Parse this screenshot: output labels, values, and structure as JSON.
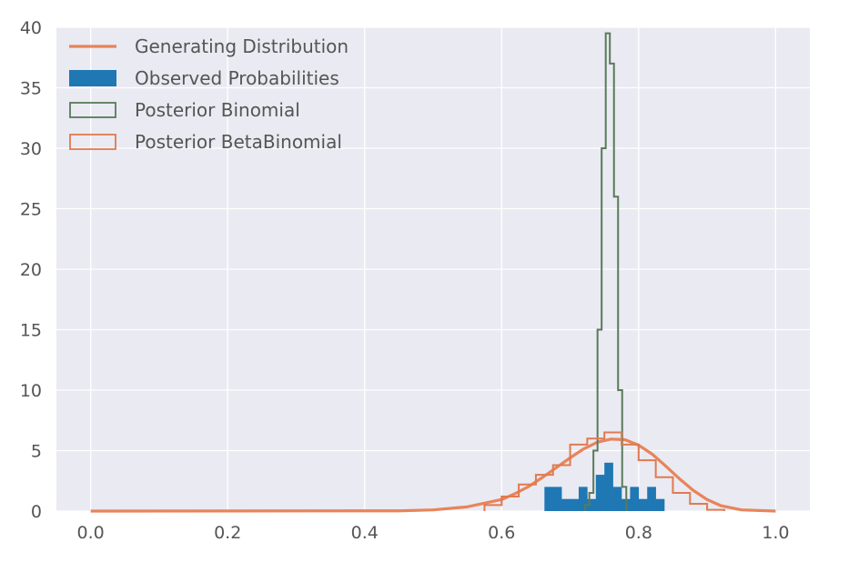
{
  "chart_data": {
    "type": "histogram",
    "title": "",
    "xlabel": "",
    "ylabel": "",
    "xlim": [
      -0.05,
      1.05
    ],
    "ylim": [
      0,
      40
    ],
    "x_ticks": [
      "0.0",
      "0.2",
      "0.4",
      "0.6",
      "0.8",
      "1.0"
    ],
    "y_ticks": [
      "0",
      "5",
      "10",
      "15",
      "20",
      "25",
      "30",
      "35",
      "40"
    ],
    "grid": true,
    "legend_position": "upper-left",
    "colors": {
      "plot_background": "#eaeaf2",
      "grid": "#ffffff",
      "generating": "#e8845a",
      "observed": "#1f77b4",
      "posterior_binomial": "#5a7a5a",
      "posterior_betabinomial": "#e07a50"
    },
    "legend": [
      {
        "label": "Generating Distribution",
        "kind": "line",
        "color_key": "generating"
      },
      {
        "label": "Observed Probabilities",
        "kind": "filled",
        "color_key": "observed"
      },
      {
        "label": "Posterior Binomial",
        "kind": "step",
        "color_key": "posterior_binomial"
      },
      {
        "label": "Posterior BetaBinomial",
        "kind": "step",
        "color_key": "posterior_betabinomial"
      }
    ],
    "series": [
      {
        "name": "Generating Distribution",
        "kind": "line",
        "color_key": "generating",
        "x": [
          0.0,
          0.45,
          0.5,
          0.55,
          0.6,
          0.62,
          0.64,
          0.66,
          0.68,
          0.7,
          0.72,
          0.74,
          0.76,
          0.78,
          0.8,
          0.82,
          0.84,
          0.86,
          0.88,
          0.9,
          0.92,
          0.95,
          1.0
        ],
        "y": [
          0.0,
          0.02,
          0.1,
          0.35,
          0.95,
          1.45,
          2.05,
          2.8,
          3.6,
          4.4,
          5.15,
          5.7,
          5.95,
          5.9,
          5.45,
          4.7,
          3.7,
          2.65,
          1.7,
          0.95,
          0.45,
          0.1,
          0.0
        ]
      },
      {
        "name": "Observed Probabilities",
        "kind": "filled_hist",
        "color_key": "observed",
        "bin_width": 0.0125,
        "bin_starts": [
          0.6625,
          0.675,
          0.6875,
          0.7,
          0.7125,
          0.725,
          0.7375,
          0.75,
          0.7625,
          0.775,
          0.7875,
          0.8,
          0.8125,
          0.825,
          0.8375
        ],
        "values": [
          2,
          2,
          1,
          1,
          2,
          1,
          3,
          4,
          2,
          1,
          2,
          1,
          2,
          1,
          0
        ]
      },
      {
        "name": "Posterior Binomial",
        "kind": "step_hist",
        "color_key": "posterior_binomial",
        "bin_width": 0.006,
        "bin_starts": [
          0.722,
          0.728,
          0.734,
          0.74,
          0.746,
          0.752,
          0.758,
          0.764,
          0.77,
          0.776
        ],
        "values": [
          0.5,
          1.5,
          5.0,
          15.0,
          30.0,
          39.5,
          37.0,
          26.0,
          10.0,
          2.0
        ]
      },
      {
        "name": "Posterior BetaBinomial",
        "kind": "step_hist",
        "color_key": "posterior_betabinomial",
        "bin_width": 0.025,
        "bin_starts": [
          0.575,
          0.6,
          0.625,
          0.65,
          0.675,
          0.7,
          0.725,
          0.75,
          0.775,
          0.8,
          0.825,
          0.85,
          0.875,
          0.9
        ],
        "values": [
          0.5,
          1.2,
          2.2,
          3.0,
          3.8,
          5.5,
          6.0,
          6.5,
          5.5,
          4.2,
          2.8,
          1.5,
          0.6,
          0.1
        ]
      }
    ]
  }
}
